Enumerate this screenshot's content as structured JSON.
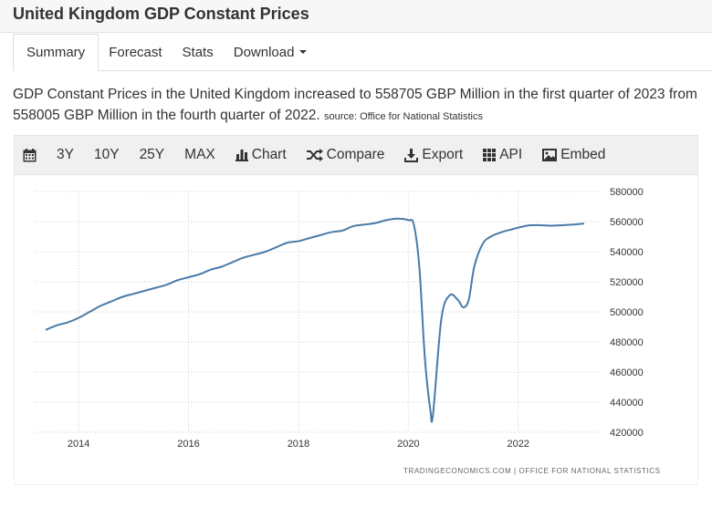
{
  "page": {
    "title": "United Kingdom GDP Constant Prices"
  },
  "tabs": [
    {
      "label": "Summary",
      "active": true
    },
    {
      "label": "Forecast"
    },
    {
      "label": "Stats"
    },
    {
      "label": "Download",
      "has_dropdown": true
    }
  ],
  "description": {
    "text": "GDP Constant Prices in the United Kingdom increased to 558705 GBP Million in the first quarter of 2023 from 558005 GBP Million in the fourth quarter of 2022.",
    "source": "source: Office for National Statistics"
  },
  "toolbar": {
    "calendar_icon": "calendar-icon",
    "ranges": [
      "3Y",
      "10Y",
      "25Y",
      "MAX"
    ],
    "chart_label": "Chart",
    "compare_label": "Compare",
    "export_label": "Export",
    "api_label": "API",
    "embed_label": "Embed"
  },
  "chart_data": {
    "type": "line",
    "line_color": "#4a7ba7",
    "xlim": [
      2013.2,
      2023.5
    ],
    "ylim": [
      420000,
      580000
    ],
    "y_axis_side": "right",
    "grid": "dotted",
    "x_ticks": [
      "2014",
      "2016",
      "2018",
      "2020",
      "2022"
    ],
    "y_ticks": [
      "580000",
      "560000",
      "540000",
      "520000",
      "500000",
      "480000",
      "460000",
      "440000",
      "420000"
    ],
    "credit": "TRADINGECONOMICS.COM | OFFICE FOR NATIONAL STATISTICS",
    "series": [
      {
        "x": [
          2013.4,
          2013.6,
          2013.8,
          2014.0,
          2014.2,
          2014.4,
          2014.6,
          2014.8,
          2015.0,
          2015.2,
          2015.4,
          2015.6,
          2015.8,
          2016.0,
          2016.2,
          2016.4,
          2016.6,
          2016.8,
          2017.0,
          2017.2,
          2017.4,
          2017.6,
          2017.8,
          2018.0,
          2018.2,
          2018.4,
          2018.6,
          2018.8,
          2019.0,
          2019.2,
          2019.4,
          2019.6,
          2019.8,
          2020.0,
          2020.1,
          2020.2,
          2020.3,
          2020.4,
          2020.45,
          2020.6,
          2020.75,
          2020.9,
          2021.0,
          2021.1,
          2021.2,
          2021.35,
          2021.5,
          2021.7,
          2021.9,
          2022.0,
          2022.2,
          2022.4,
          2022.6,
          2022.8,
          2023.0,
          2023.2
        ],
        "y": [
          488000,
          491000,
          493000,
          496000,
          500000,
          504000,
          507000,
          510000,
          512000,
          514000,
          516000,
          518000,
          521000,
          523000,
          525000,
          528000,
          530000,
          533000,
          536000,
          538000,
          540000,
          543000,
          546000,
          547000,
          549000,
          551000,
          553000,
          554000,
          557000,
          558000,
          559000,
          561000,
          562000,
          561000,
          558000,
          530000,
          470000,
          435000,
          432000,
          495000,
          511000,
          508000,
          503000,
          508000,
          530000,
          545000,
          550000,
          553000,
          555000,
          556000,
          557500,
          557600,
          557300,
          557600,
          558000,
          558700
        ]
      }
    ]
  }
}
